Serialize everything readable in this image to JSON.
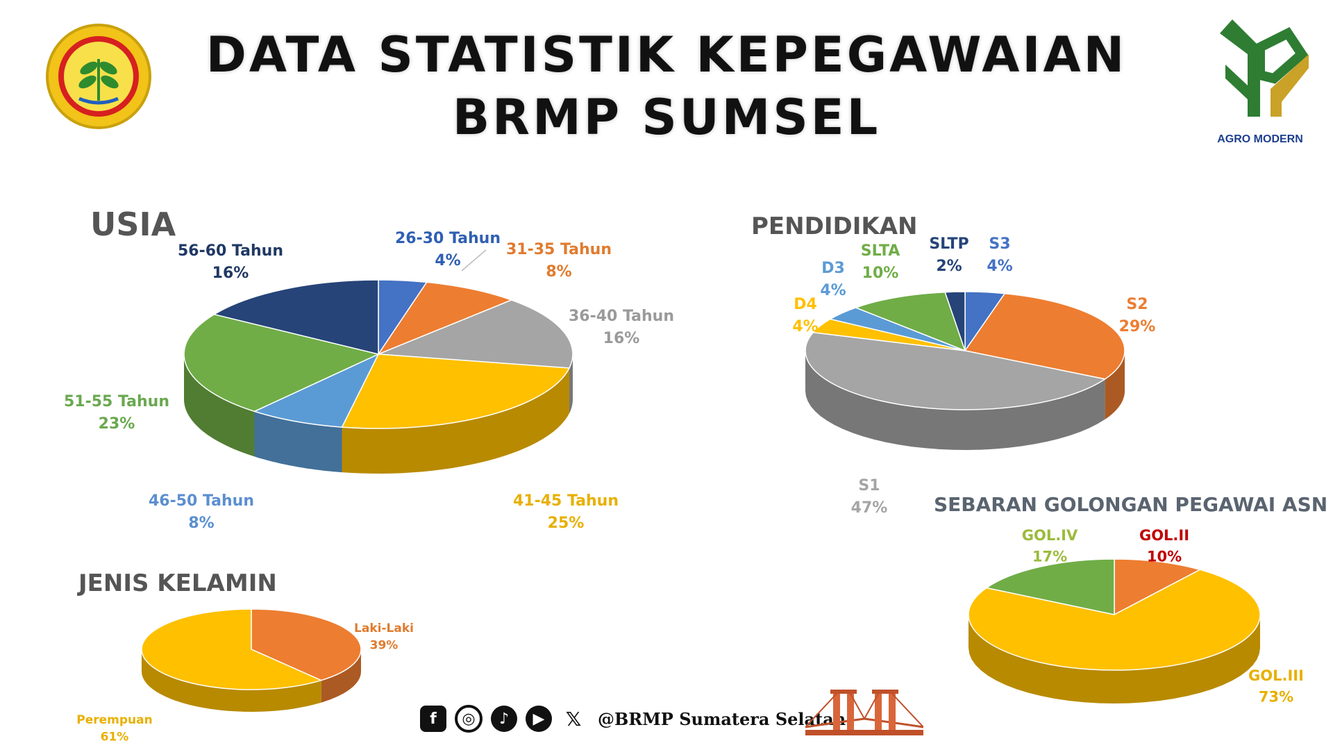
{
  "header": {
    "title_line1": "DATA STATISTIK KEPEGAWAIAN",
    "title_line2": "BRMP SUMSEL",
    "right_logo_text": "AGRO MODERN"
  },
  "footer": {
    "handle": "@BRMP Sumatera Selatan",
    "icons": [
      "facebook-icon",
      "instagram-icon",
      "tiktok-icon",
      "youtube-icon",
      "x-icon"
    ]
  },
  "chart_data": [
    {
      "type": "pie",
      "title": "USIA",
      "slices": [
        {
          "label": "26-30 Tahun",
          "value": 4,
          "value_label": "4%",
          "color": "#4472c4",
          "text_color": "#2f5fb3"
        },
        {
          "label": "31-35 Tahun",
          "value": 8,
          "value_label": "8%",
          "color": "#ed7d31",
          "text_color": "#e07b2e"
        },
        {
          "label": "36-40 Tahun",
          "value": 16,
          "value_label": "16%",
          "color": "#a5a5a5",
          "text_color": "#9a9a9a"
        },
        {
          "label": "41-45 Tahun",
          "value": 25,
          "value_label": "25%",
          "color": "#ffc000",
          "text_color": "#e8b000"
        },
        {
          "label": "46-50 Tahun",
          "value": 8,
          "value_label": "8%",
          "color": "#5b9bd5",
          "text_color": "#5b8fd0"
        },
        {
          "label": "51-55 Tahun",
          "value": 23,
          "value_label": "23%",
          "color": "#70ad47",
          "text_color": "#6aa84f"
        },
        {
          "label": "56-60 Tahun",
          "value": 16,
          "value_label": "16%",
          "color": "#264478",
          "text_color": "#203864"
        }
      ]
    },
    {
      "type": "pie",
      "title": "PENDIDIKAN",
      "slices": [
        {
          "label": "S3",
          "value": 4,
          "value_label": "4%",
          "color": "#4472c4",
          "text_color": "#4472c4"
        },
        {
          "label": "S2",
          "value": 29,
          "value_label": "29%",
          "color": "#ed7d31",
          "text_color": "#ed7d31"
        },
        {
          "label": "S1",
          "value": 47,
          "value_label": "47%",
          "color": "#a5a5a5",
          "text_color": "#a5a5a5"
        },
        {
          "label": "D4",
          "value": 4,
          "value_label": "4%",
          "color": "#ffc000",
          "text_color": "#ffc000"
        },
        {
          "label": "D3",
          "value": 4,
          "value_label": "4%",
          "color": "#5b9bd5",
          "text_color": "#5b9bd5"
        },
        {
          "label": "SLTA",
          "value": 10,
          "value_label": "10%",
          "color": "#70ad47",
          "text_color": "#70ad47"
        },
        {
          "label": "SLTP",
          "value": 2,
          "value_label": "2%",
          "color": "#264478",
          "text_color": "#264478"
        }
      ]
    },
    {
      "type": "pie",
      "title": "JENIS KELAMIN",
      "slices": [
        {
          "label": "Laki-Laki",
          "value": 39,
          "value_label": "39%",
          "color": "#ed7d31",
          "text_color": "#e07b2e"
        },
        {
          "label": "Perempuan",
          "value": 61,
          "value_label": "61%",
          "color": "#ffc000",
          "text_color": "#e8b000"
        }
      ]
    },
    {
      "type": "pie",
      "title": "SEBARAN GOLONGAN PEGAWAI ASN",
      "slices": [
        {
          "label": "GOL.II",
          "value": 10,
          "value_label": "10%",
          "color": "#ed7d31",
          "text_color": "#c00000"
        },
        {
          "label": "GOL.III",
          "value": 73,
          "value_label": "73%",
          "color": "#ffc000",
          "text_color": "#e8b000"
        },
        {
          "label": "GOL.IV",
          "value": 17,
          "value_label": "17%",
          "color": "#70ad47",
          "text_color": "#9bbb3b"
        }
      ]
    }
  ]
}
